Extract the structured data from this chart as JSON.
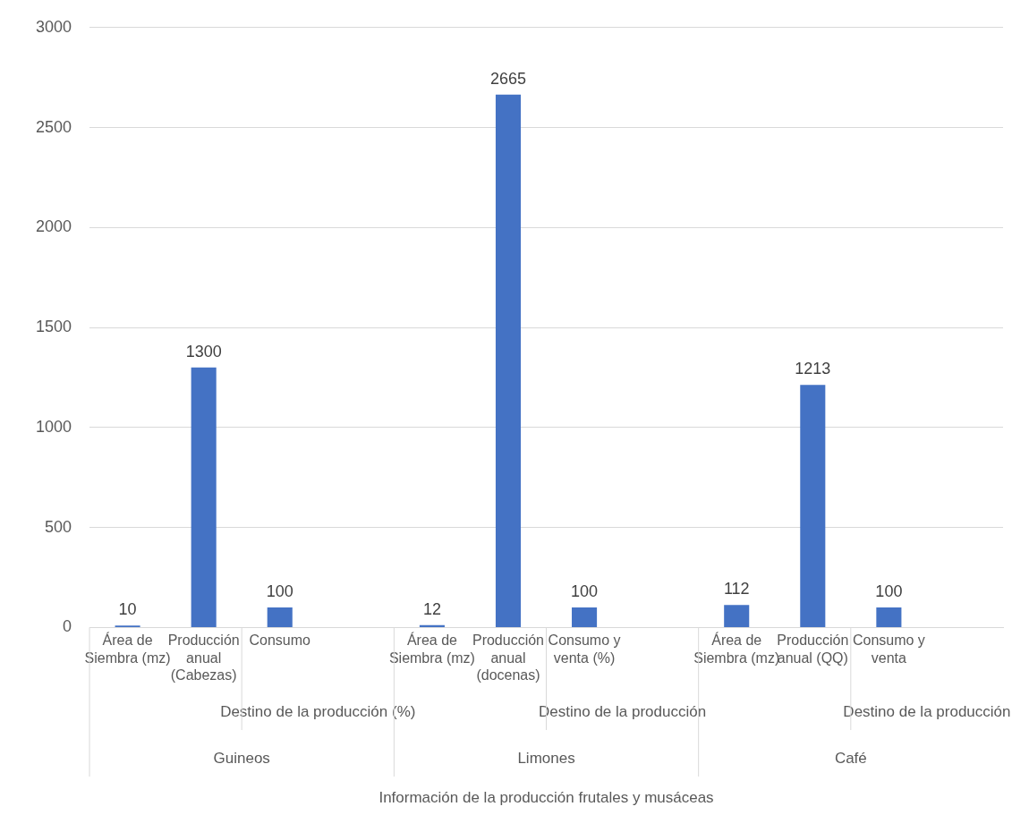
{
  "chart_data": {
    "type": "bar",
    "categories": [
      "Área de Siembra (mz)",
      "Producción anual (Cabezas)",
      "Consumo",
      null,
      "Área de Siembra (mz)",
      "Producción anual (docenas)",
      "Consumo y venta (%)",
      null,
      "Área de Siembra (mz)",
      "Producción anual (QQ)",
      "Consumo y venta",
      null
    ],
    "values": [
      10,
      1300,
      100,
      null,
      12,
      2665,
      100,
      null,
      112,
      1213,
      100,
      null
    ],
    "color": "#4472c4",
    "annotations": [
      "Destino de la producción (%)",
      "Destino de la producción",
      "Destino de la producción",
      "Guineos",
      "Limones",
      "Café",
      "Información de la producción frutales y musáceas"
    ],
    "ylim": [
      0,
      3000
    ],
    "yticks": [
      0,
      500,
      1000,
      1500,
      2000,
      2500,
      3000
    ],
    "grid": "y",
    "data_labels": true,
    "legend": false
  }
}
